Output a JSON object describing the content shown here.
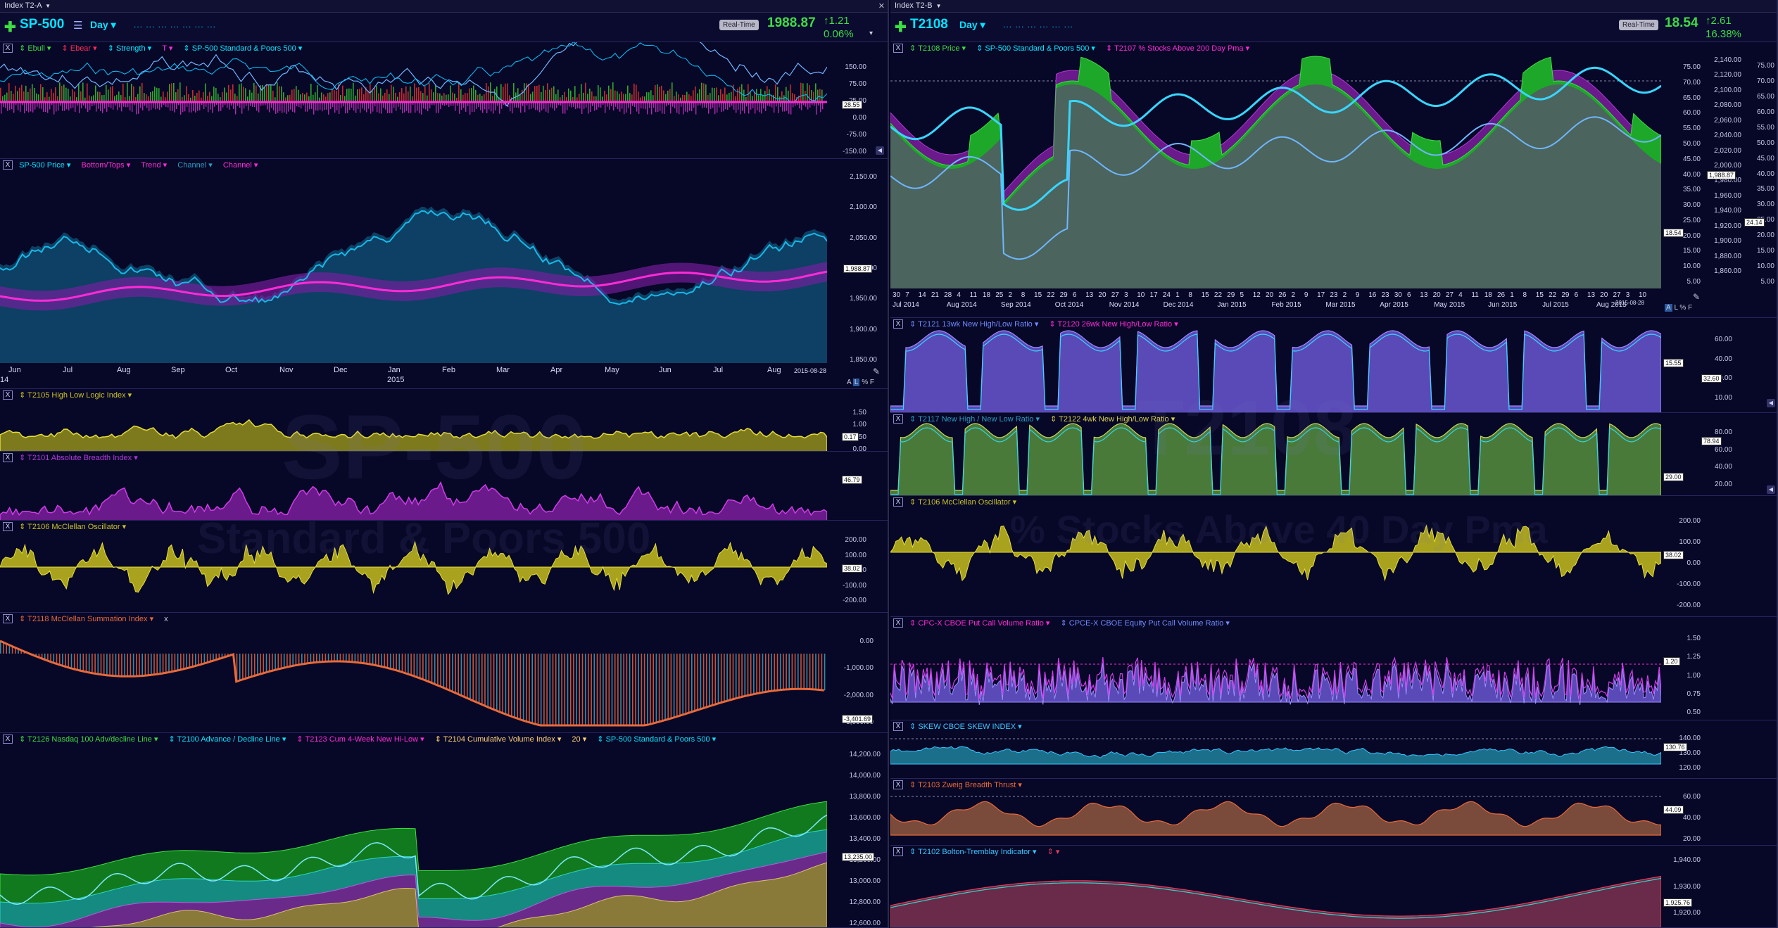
{
  "left": {
    "window_title": "Index T2-A",
    "symbol": "SP-500",
    "period": "Day",
    "dots": "... ... ... ... ... ... ...",
    "realtime": "Real-Time",
    "last_price": "1988.87",
    "change": "1.21",
    "change_pct": "0.06%",
    "watermark_big": "SP-500",
    "watermark_small": "Standard & Poors 500",
    "panes": [
      {
        "labels": [
          "Ebull",
          "Ebear",
          "Strength",
          "T",
          "SP-500 Standard & Poors 500"
        ],
        "axis": [
          "150.00",
          "75.00",
          "25.00",
          "0.00",
          "-75.00",
          "-150.00"
        ],
        "tag": "28.55"
      },
      {
        "labels": [
          "SP-500 Price",
          "Bottom/Tops",
          "Trend",
          "Channel",
          "Channel"
        ],
        "axis": [
          "2,150.00",
          "2,100.00",
          "2,050.00",
          "2,000.00",
          "1,950.00",
          "1,900.00",
          "1,850.00"
        ],
        "tag": "1,988.87",
        "dates": [
          "Jun",
          "Jul",
          "Aug",
          "Sep",
          "Oct",
          "Nov",
          "Dec",
          "Jan",
          "Feb",
          "Mar",
          "Apr",
          "May",
          "Jun",
          "Jul",
          "Aug"
        ],
        "year_left": "14",
        "year_mid": "2015",
        "end_date": "2015-08-28"
      },
      {
        "labels": [
          "T2105 High Low Logic Index"
        ],
        "axis": [
          "1.50",
          "1.00",
          "0.50",
          "0.00"
        ],
        "tag": "0.17"
      },
      {
        "labels": [
          "T2101 Absolute Breadth Index"
        ],
        "axis": [],
        "tag": "46.79"
      },
      {
        "labels": [
          "T2106 McClellan Oscillator"
        ],
        "axis": [
          "200.00",
          "100.00",
          "0.00",
          "-100.00",
          "-200.00"
        ],
        "tag": "38.02"
      },
      {
        "labels": [
          "T2118 McClellan Summation Index",
          "x"
        ],
        "axis": [
          "0.00",
          "-1,000.00",
          "-2,000.00",
          "-3,000.00"
        ],
        "tag": "-3,401.69"
      },
      {
        "labels": [
          "T2126 Nasdaq 100 Adv/decline Line",
          "T2100 Advance / Decline Line",
          "T2123 Cum 4-Week New Hi-Low",
          "T2104 Cumulative Volume Index",
          "20",
          "SP-500 Standard & Poors 500"
        ],
        "axis": [
          "14,200.00",
          "14,000.00",
          "13,800.00",
          "13,600.00",
          "13,400.00",
          "13,200.00",
          "13,000.00",
          "12,800.00",
          "12,600.00"
        ],
        "tag": "13,235.00"
      }
    ]
  },
  "right": {
    "window_title": "Index T2-B",
    "symbol": "T2108",
    "period": "Day",
    "dots": "... ... ... ... ... ...",
    "realtime": "Real-Time",
    "last_price": "18.54",
    "change": "2.61",
    "change_pct": "16.38%",
    "watermark_big": "T2108",
    "watermark_small": "% Stocks Above 40 Day Pma",
    "panes": [
      {
        "labels": [
          "T2108 Price",
          "SP-500 Standard & Poors 500",
          "T2107 % Stocks Above 200 Day Pma"
        ],
        "axis": [
          "75.00",
          "70.00",
          "65.00",
          "60.00",
          "55.00",
          "50.00",
          "45.00",
          "40.00",
          "35.00",
          "30.00",
          "25.00",
          "20.00",
          "15.00",
          "10.00",
          "5.00"
        ],
        "axis2": [
          "2,140.00",
          "2,120.00",
          "2,100.00",
          "2,080.00",
          "2,060.00",
          "2,040.00",
          "2,020.00",
          "2,000.00",
          "1,980.00",
          "1,960.00",
          "1,940.00",
          "1,920.00",
          "1,900.00",
          "1,880.00",
          "1,860.00"
        ],
        "axis3": [
          "75.00",
          "70.00",
          "65.00",
          "60.00",
          "55.00",
          "50.00",
          "45.00",
          "40.00",
          "35.00",
          "30.00",
          "25.00",
          "20.00",
          "15.00",
          "10.00",
          "5.00"
        ],
        "tag": "18.54",
        "tag2": "1,988.87",
        "tag3": "24.14",
        "dates": [
          "30",
          "7",
          "14",
          "21",
          "28",
          "4",
          "11",
          "18",
          "25",
          "2",
          "8",
          "15",
          "22",
          "29",
          "6",
          "13",
          "20",
          "27",
          "3",
          "10",
          "17",
          "24",
          "1",
          "8",
          "15",
          "22",
          "29",
          "5",
          "12",
          "20",
          "26",
          "2",
          "9",
          "17",
          "23",
          "2",
          "9",
          "16",
          "23",
          "30",
          "6",
          "13",
          "20",
          "27",
          "4",
          "11",
          "18",
          "26",
          "1",
          "8",
          "15",
          "22",
          "29",
          "6",
          "13",
          "20",
          "27",
          "3",
          "10"
        ],
        "months": [
          "Jul 2014",
          "Aug 2014",
          "Sep 2014",
          "Oct 2014",
          "Nov 2014",
          "Dec 2014",
          "Jan 2015",
          "Feb 2015",
          "Mar 2015",
          "Apr 2015",
          "May 2015",
          "Jun 2015",
          "Jul 2015",
          "Aug 2015"
        ],
        "end_date": "2015-08-28"
      },
      {
        "labels": [
          "T2121 13wk New High/Low Ratio",
          "T2120 26wk New High/Low Ratio"
        ],
        "axis": [
          "60.00",
          "40.00",
          "20.00",
          "10.00"
        ],
        "tag": "15.55",
        "tag2": "32.60"
      },
      {
        "labels": [
          "T2117 New High / New Low Ratio",
          "T2122 4wk New High/Low Ratio"
        ],
        "axis": [
          "80.00",
          "60.00",
          "40.00",
          "20.00"
        ],
        "tag": "29.00",
        "tag2": "78.94"
      },
      {
        "labels": [
          "T2106 McClellan Oscillator"
        ],
        "axis": [
          "200.00",
          "100.00",
          "0.00",
          "-100.00",
          "-200.00"
        ],
        "tag": "38.02"
      },
      {
        "labels": [
          "CPC-X CBOE Put Call Volume Ratio",
          "CPCE-X CBOE Equity Put Call Volume Ratio"
        ],
        "axis": [
          "1.50",
          "1.25",
          "1.00",
          "0.75",
          "0.50"
        ],
        "tag": "1.20"
      },
      {
        "labels": [
          "SKEW CBOE SKEW INDEX"
        ],
        "axis": [
          "140.00",
          "130.00",
          "120.00"
        ],
        "tag": "130.76"
      },
      {
        "labels": [
          "T2103 Zweig Breadth Thrust"
        ],
        "axis": [
          "60.00",
          "40.00",
          "20.00"
        ],
        "tag": "44.09"
      },
      {
        "labels": [
          "T2102 Bolton-Tremblay Indicator"
        ],
        "axis": [
          "1,940.00",
          "1,930.00",
          "1,920.00"
        ],
        "tag": "1,925.76"
      }
    ]
  },
  "colors": {
    "bg": "#070727",
    "cyan": "#00e5ff",
    "green": "#3ddc44",
    "magenta": "#ff2bd6",
    "purple": "#7a1ea0",
    "olive": "#c9c12a",
    "teal": "#1b6f8a",
    "orange": "#d8552b",
    "lavender": "#7b6fe0"
  }
}
